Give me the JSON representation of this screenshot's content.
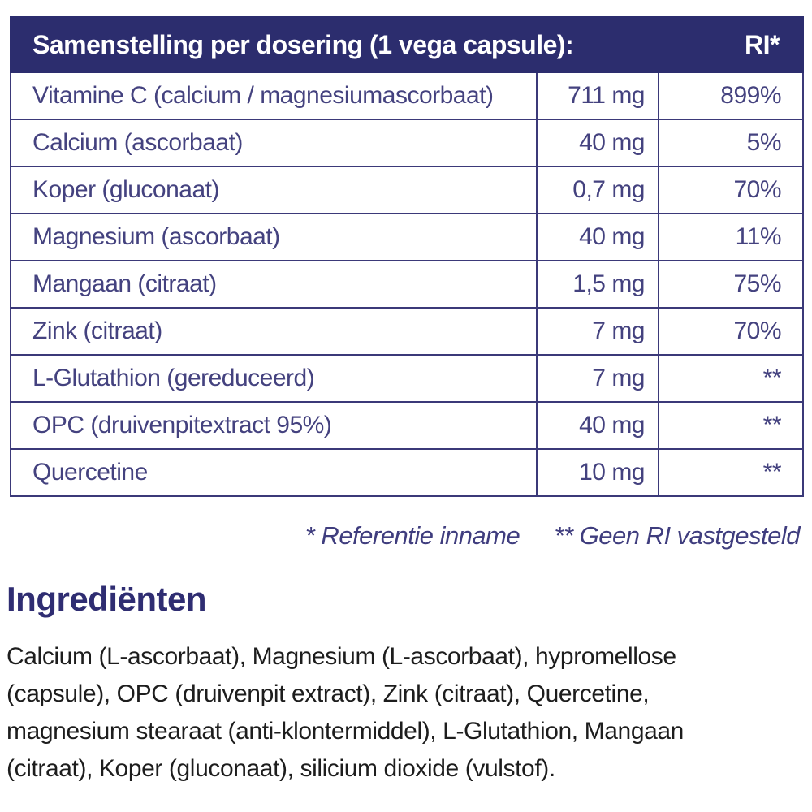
{
  "table": {
    "header": {
      "title": "Samenstelling per dosering (1 vega capsule):",
      "ri_label": "RI*"
    },
    "rows": [
      {
        "name": "Vitamine C (calcium / magnesiumascorbaat)",
        "amount": "711 mg",
        "ri": "899%"
      },
      {
        "name": "Calcium (ascorbaat)",
        "amount": "40 mg",
        "ri": "5%"
      },
      {
        "name": "Koper (gluconaat)",
        "amount": "0,7 mg",
        "ri": "70%"
      },
      {
        "name": "Magnesium (ascorbaat)",
        "amount": "40 mg",
        "ri": "11%"
      },
      {
        "name": "Mangaan (citraat)",
        "amount": "1,5 mg",
        "ri": "75%"
      },
      {
        "name": "Zink (citraat)",
        "amount": "7 mg",
        "ri": "70%"
      },
      {
        "name": "L-Glutathion (gereduceerd)",
        "amount": "7 mg",
        "ri": "**"
      },
      {
        "name": "OPC (druivenpitextract 95%)",
        "amount": "40 mg",
        "ri": "**"
      },
      {
        "name": "Quercetine",
        "amount": "10 mg",
        "ri": "**"
      }
    ],
    "footnote": {
      "ref": "* Referentie inname",
      "no_ri": "** Geen RI vastgesteld"
    }
  },
  "ingredients": {
    "heading": "Ingrediënten",
    "lines": [
      "Calcium (L-ascorbaat), Magnesium (L-ascorbaat), hypromellose",
      "(capsule), OPC (druivenpit extract), Zink (citraat), Quercetine,",
      "magnesium stearaat (anti-klontermiddel), L-Glutathion, Mangaan",
      "(citraat), Koper (gluconaat), silicium dioxide (vulstof)."
    ]
  },
  "colors": {
    "header_bg": "#2c2d6e",
    "table_indigo": "#3b3979",
    "row_text": "#44427f",
    "heading_text": "#2f2d72",
    "body_text": "#1d1d1d"
  }
}
